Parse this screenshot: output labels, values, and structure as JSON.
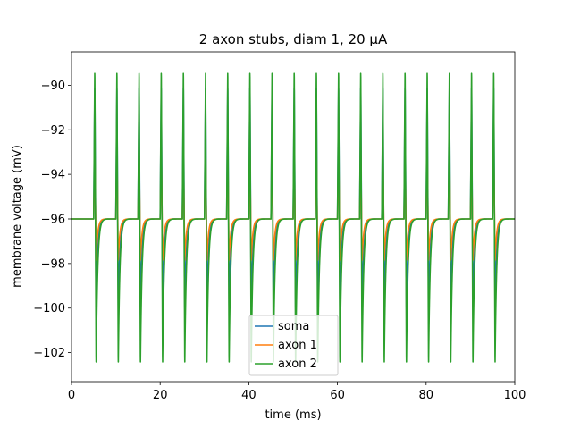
{
  "chart_data": {
    "type": "line",
    "title": "2 axon stubs, diam 1, 20 μA",
    "xlabel": "time (ms)",
    "ylabel": "membrane voltage (mV)",
    "xlim": [
      0,
      100
    ],
    "ylim": [
      -103.3,
      -88.5
    ],
    "x_ticks": [
      0,
      20,
      40,
      60,
      80,
      100
    ],
    "y_ticks": [
      -102,
      -100,
      -98,
      -96,
      -94,
      -92,
      -90
    ],
    "x_tick_labels": [
      "0",
      "20",
      "40",
      "60",
      "80",
      "100"
    ],
    "y_tick_labels": [
      "−102",
      "−100",
      "−98",
      "−96",
      "−94",
      "−92",
      "−90"
    ],
    "resting_voltage": -96.0,
    "spike_times": [
      5,
      10,
      15,
      20,
      25,
      30,
      35,
      40,
      45,
      50,
      55,
      60,
      65,
      70,
      75,
      80,
      85,
      90,
      95
    ],
    "legend_position": "lower-center",
    "series": [
      {
        "name": "soma",
        "color": "#1f77b4",
        "peak": -89.9,
        "trough": -100.2
      },
      {
        "name": "axon 1",
        "color": "#ff7f0e",
        "peak": -92.7,
        "trough": -97.9
      },
      {
        "name": "axon 2",
        "color": "#2ca02c",
        "peak": -89.2,
        "trough": -102.6
      }
    ],
    "grid": false
  }
}
